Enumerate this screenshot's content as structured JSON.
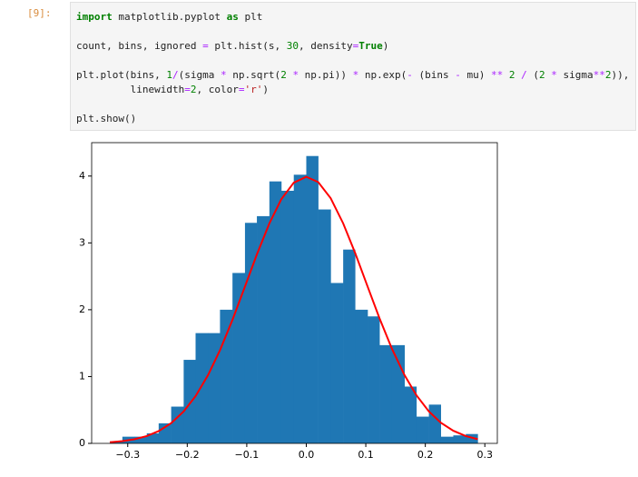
{
  "cell": {
    "prompt": "[9]:",
    "code_lines": [
      [
        {
          "text": "import",
          "kind": "kw"
        },
        {
          "text": " matplotlib.pyplot "
        },
        {
          "text": "as",
          "kind": "kw"
        },
        {
          "text": " plt"
        }
      ],
      [],
      [
        {
          "text": "count, bins, ignored "
        },
        {
          "text": "=",
          "kind": "op"
        },
        {
          "text": " plt.hist(s, "
        },
        {
          "text": "30",
          "kind": "num"
        },
        {
          "text": ", density"
        },
        {
          "text": "=",
          "kind": "op"
        },
        {
          "text": "True",
          "kind": "kw"
        },
        {
          "text": ")"
        }
      ],
      [],
      [
        {
          "text": "plt.plot(bins, "
        },
        {
          "text": "1",
          "kind": "num"
        },
        {
          "text": "/",
          "kind": "op"
        },
        {
          "text": "(sigma "
        },
        {
          "text": "*",
          "kind": "op"
        },
        {
          "text": " np.sqrt("
        },
        {
          "text": "2",
          "kind": "num"
        },
        {
          "text": " "
        },
        {
          "text": "*",
          "kind": "op"
        },
        {
          "text": " np.pi)) "
        },
        {
          "text": "*",
          "kind": "op"
        },
        {
          "text": " np.exp("
        },
        {
          "text": "-",
          "kind": "op"
        },
        {
          "text": " (bins "
        },
        {
          "text": "-",
          "kind": "op"
        },
        {
          "text": " mu) "
        },
        {
          "text": "**",
          "kind": "op"
        },
        {
          "text": " "
        },
        {
          "text": "2",
          "kind": "num"
        },
        {
          "text": " "
        },
        {
          "text": "/",
          "kind": "op"
        },
        {
          "text": " ("
        },
        {
          "text": "2",
          "kind": "num"
        },
        {
          "text": " "
        },
        {
          "text": "*",
          "kind": "op"
        },
        {
          "text": " sigma"
        },
        {
          "text": "**",
          "kind": "op"
        },
        {
          "text": "2",
          "kind": "num"
        },
        {
          "text": ")),"
        }
      ],
      [
        {
          "text": "         linewidth"
        },
        {
          "text": "=",
          "kind": "op"
        },
        {
          "text": "2",
          "kind": "num"
        },
        {
          "text": ", color"
        },
        {
          "text": "=",
          "kind": "op"
        },
        {
          "text": "'r'",
          "kind": "str"
        },
        {
          "text": ")"
        }
      ],
      [],
      [
        {
          "text": "plt.show()"
        }
      ]
    ]
  },
  "chart_data": {
    "type": "histogram",
    "bins": [
      -0.33,
      -0.309,
      -0.289,
      -0.268,
      -0.248,
      -0.227,
      -0.206,
      -0.186,
      -0.165,
      -0.145,
      -0.124,
      -0.103,
      -0.083,
      -0.062,
      -0.042,
      -0.021,
      0.0,
      0.02,
      0.041,
      0.062,
      0.082,
      0.103,
      0.123,
      0.144,
      0.165,
      0.185,
      0.206,
      0.226,
      0.247,
      0.268,
      0.288
    ],
    "values": [
      0.03,
      0.1,
      0.1,
      0.15,
      0.3,
      0.55,
      1.25,
      1.65,
      1.65,
      2.0,
      2.55,
      3.3,
      3.4,
      3.92,
      3.78,
      4.02,
      4.3,
      3.5,
      2.4,
      2.9,
      2.0,
      1.9,
      1.47,
      1.47,
      0.85,
      0.4,
      0.58,
      0.1,
      0.12,
      0.14
    ],
    "color": "#1f77b4",
    "curve": {
      "color": "#ff0000",
      "values": [
        0.017,
        0.034,
        0.061,
        0.11,
        0.184,
        0.303,
        0.478,
        0.707,
        1.023,
        1.394,
        1.849,
        2.348,
        2.828,
        3.292,
        3.653,
        3.901,
        3.989,
        3.91,
        3.668,
        3.292,
        2.851,
        2.348,
        1.873,
        1.414,
        1.023,
        0.721,
        0.478,
        0.31,
        0.189,
        0.11,
        0.063
      ]
    },
    "xlim": [
      -0.3606,
      0.321
    ],
    "ylim": [
      0,
      4.5
    ],
    "xticks": [
      {
        "value": -0.3,
        "label": "−0.3"
      },
      {
        "value": -0.2,
        "label": "−0.2"
      },
      {
        "value": -0.1,
        "label": "−0.1"
      },
      {
        "value": 0,
        "label": "0.0"
      },
      0.1,
      0.2,
      0.3
    ],
    "yticks": [
      0,
      1,
      2,
      3,
      4
    ],
    "grid": false
  }
}
